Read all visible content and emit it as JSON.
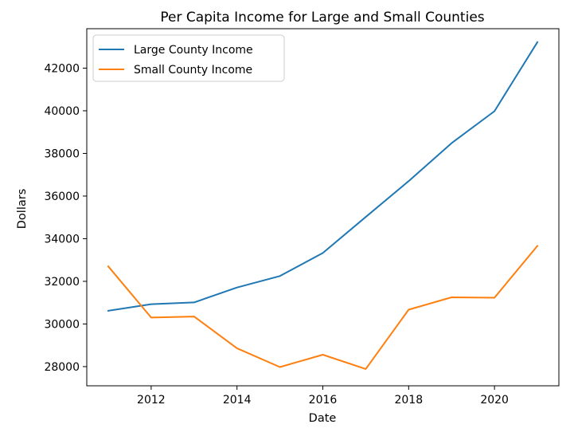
{
  "chart_data": {
    "type": "line",
    "title": "Per Capita Income for Large and Small Counties",
    "xlabel": "Date",
    "ylabel": "Dollars",
    "x": [
      2011,
      2012,
      2013,
      2014,
      2015,
      2016,
      2017,
      2018,
      2019,
      2020,
      2021
    ],
    "xlim": [
      2010.5,
      2021.5
    ],
    "ylim": [
      27100,
      43850
    ],
    "xticks": [
      2012,
      2014,
      2016,
      2018,
      2020
    ],
    "yticks": [
      28000,
      30000,
      32000,
      34000,
      36000,
      38000,
      40000,
      42000
    ],
    "grid": false,
    "legend_position": "upper-left",
    "series": [
      {
        "name": "Large County Income",
        "color": "#1f77b4",
        "values": [
          30620,
          30930,
          31010,
          31710,
          32250,
          33330,
          35020,
          36700,
          38480,
          39980,
          43220
        ]
      },
      {
        "name": "Small County Income",
        "color": "#ff7f0e",
        "values": [
          32700,
          30300,
          30350,
          28860,
          27980,
          28560,
          27890,
          30670,
          31250,
          31230,
          33660
        ]
      }
    ]
  }
}
